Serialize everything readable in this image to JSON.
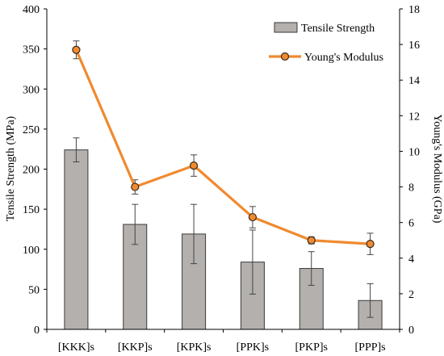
{
  "chart_data": {
    "type": "bar",
    "categories": [
      "[KKK]s",
      "[KKP]s",
      "[KPK]s",
      "[PPK]s",
      "[PKP]s",
      "[PPP]s"
    ],
    "series": [
      {
        "name": "Tensile Strength",
        "kind": "bar",
        "axis": "left",
        "values": [
          224,
          131,
          119,
          84,
          76,
          36
        ],
        "error": [
          15,
          25,
          37,
          40,
          21,
          21
        ]
      },
      {
        "name": "Young's Modulus",
        "kind": "line",
        "axis": "right",
        "values": [
          15.7,
          8.0,
          9.2,
          6.3,
          5.0,
          4.8
        ],
        "error": [
          0.5,
          0.4,
          0.6,
          0.6,
          0.2,
          0.6
        ]
      }
    ],
    "ylabel": "Tensile Strength (MPa)",
    "ylabel_right": "Young's Modulus (GPa)",
    "ylim": [
      0,
      400
    ],
    "ylim_right": [
      0,
      18
    ],
    "yticks": [
      "0",
      "50",
      "100",
      "150",
      "200",
      "250",
      "300",
      "350",
      "400"
    ],
    "yticks_right": [
      "0",
      "2",
      "4",
      "6",
      "8",
      "10",
      "12",
      "14",
      "16",
      "18"
    ],
    "grid": false,
    "legend_position": "top-right",
    "colors": {
      "bar_fill": "#b3b0ad",
      "bar_stroke": "#3a3a3a",
      "line": "#f08a30",
      "marker_fill": "#f08a30",
      "marker_stroke": "#3a2a1a",
      "error": "#444444",
      "axis": "#000000"
    }
  }
}
